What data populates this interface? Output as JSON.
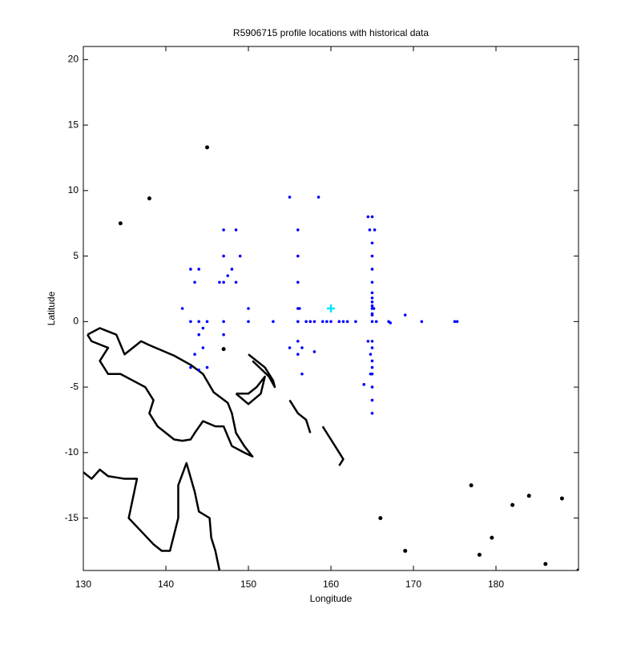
{
  "chart_data": {
    "type": "scatter",
    "title": "R5906715 profile locations with historical data",
    "xlabel": "Longitude",
    "ylabel": "Latitude",
    "xlim": [
      130,
      190
    ],
    "ylim": [
      -19,
      21
    ],
    "xticks": [
      130,
      140,
      150,
      160,
      170,
      180
    ],
    "yticks": [
      -15,
      -10,
      -5,
      0,
      5,
      10,
      15,
      20
    ],
    "series": [
      {
        "color": "#000000",
        "style": "line",
        "x": [
          130.5,
          132,
          134,
          135,
          137,
          138,
          141,
          143,
          144.5,
          145.8,
          147.5,
          148,
          148.5,
          149.5,
          150.5,
          149.5,
          148,
          147,
          146,
          144.5,
          143.5,
          143,
          142,
          141,
          139,
          138,
          138.5,
          137.5,
          136,
          134.5,
          133,
          132,
          133,
          131,
          130.5,
          null,
          130,
          131,
          132,
          133,
          135,
          136.5,
          136,
          135.5,
          137,
          138.5,
          139.5,
          140.5,
          141.5,
          141.5,
          142.5,
          143.5,
          144,
          145.3,
          145.5,
          146,
          146.5,
          null,
          148.5,
          150,
          151,
          152,
          151.5,
          150,
          148.5,
          null,
          150,
          152,
          153,
          153.2,
          152.5,
          150.5,
          null,
          155,
          156,
          157,
          157.5,
          null,
          159,
          160,
          161,
          161.5,
          161,
          null,
          145,
          null,
          138,
          null,
          134.5,
          null,
          147,
          null,
          166,
          null,
          169,
          null,
          177,
          null,
          178,
          null,
          179.5,
          null,
          182,
          null,
          184,
          null,
          186,
          null,
          188,
          null,
          190
        ],
        "y": [
          -1,
          -0.5,
          -1,
          -2.5,
          -1.5,
          -1.8,
          -2.6,
          -3.3,
          -4,
          -5.4,
          -6.2,
          -7,
          -8.5,
          -9.5,
          -10.3,
          -10,
          -9.5,
          -8,
          -8,
          -7.6,
          -8.5,
          -9,
          -9.1,
          -9,
          -8,
          -7,
          -6,
          -5,
          -4.5,
          -4,
          -4,
          -3,
          -2,
          -1.5,
          -1,
          null,
          -11.5,
          -12,
          -11.3,
          -11.8,
          -12,
          -12,
          -13.5,
          -15,
          -16,
          -17,
          -17.5,
          -17.5,
          -15,
          -12.5,
          -10.8,
          -13,
          -14.5,
          -15,
          -16.5,
          -17.5,
          -19,
          null,
          -5.5,
          -5.5,
          -5,
          -4.2,
          -5.5,
          -6.3,
          -5.5,
          null,
          -2.5,
          -3.5,
          -4.5,
          -5,
          -4.2,
          -3,
          null,
          -6,
          -7,
          -7.5,
          -8.5,
          null,
          -8,
          -9,
          -10,
          -10.5,
          -11,
          null,
          13.3,
          null,
          9.4,
          null,
          7.5,
          null,
          -2.1,
          null,
          -15,
          null,
          -17.5,
          null,
          -12.5,
          null,
          -17.8,
          null,
          -16.5,
          null,
          -14,
          null,
          -13.3,
          null,
          -18.5,
          null,
          -13.5,
          null,
          -19
        ]
      },
      {
        "color": "#0000ff",
        "style": "points",
        "x": [
          164.5,
          165,
          155,
          158.5,
          147,
          148.5,
          156,
          164.7,
          165.3,
          165,
          147,
          149,
          156,
          165,
          143,
          144,
          148,
          147.5,
          165,
          143.5,
          146.5,
          147,
          148.5,
          156,
          165,
          165,
          165,
          165,
          165,
          142,
          150,
          156,
          156.2,
          165,
          165.2,
          165,
          169,
          165,
          143,
          144,
          145,
          147,
          150,
          153,
          156,
          157,
          157.5,
          158,
          159,
          159.5,
          160,
          161,
          161.5,
          162,
          163,
          165,
          165.5,
          167,
          167.2,
          171,
          175,
          175.3,
          144.5,
          147,
          144,
          164.5,
          165,
          156,
          144.5,
          155,
          156.5,
          165,
          164.8,
          143.5,
          156,
          158,
          165,
          165,
          143,
          145,
          144,
          156.5,
          164.8,
          165,
          164,
          165,
          165,
          165
        ],
        "y": [
          8,
          8,
          9.5,
          9.5,
          7,
          7,
          7,
          7,
          7,
          6,
          5,
          5,
          5,
          5,
          4,
          4,
          4,
          3.5,
          4,
          3,
          3,
          3,
          3,
          3,
          3,
          2.2,
          1.8,
          1.5,
          1.2,
          1,
          1,
          1,
          1,
          1,
          1,
          0.6,
          0.5,
          0.5,
          0,
          0,
          0,
          0,
          0,
          0,
          0,
          0,
          0,
          0,
          0,
          0,
          0,
          0,
          0,
          0,
          0,
          0,
          0,
          0,
          -0.1,
          0,
          0,
          0,
          -0.5,
          -1,
          -1,
          -1.5,
          -1.5,
          -1.5,
          -2,
          -2,
          -2,
          -2,
          -2.5,
          -2.5,
          -2.5,
          -2.3,
          -3,
          -3.5,
          -3.5,
          -3.5,
          -3.7,
          -4,
          -4,
          -4,
          -4.8,
          -5,
          -6,
          -7
        ]
      },
      {
        "color": "#00e5ff",
        "style": "plus",
        "x": [
          160
        ],
        "y": [
          1
        ]
      }
    ]
  }
}
